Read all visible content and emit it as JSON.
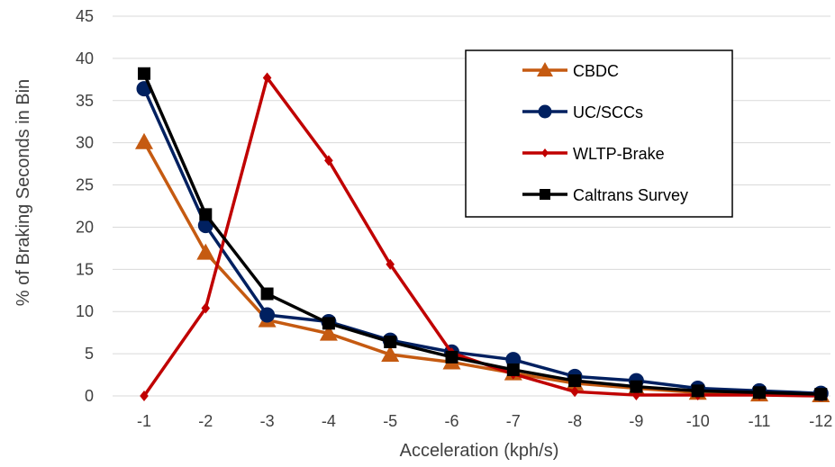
{
  "chart_data": {
    "type": "line",
    "title": "",
    "xlabel": "Acceleration (kph/s)",
    "ylabel": "% of Braking Seconds in Bin",
    "categories": [
      "-1",
      "-2",
      "-3",
      "-4",
      "-5",
      "-6",
      "-7",
      "-8",
      "-9",
      "-10",
      "-11",
      "-12"
    ],
    "ylim": [
      0,
      45
    ],
    "yticks": [
      "0",
      "5",
      "10",
      "15",
      "20",
      "25",
      "30",
      "35",
      "40",
      "45"
    ],
    "grid": "horizontal",
    "legend_position": "top-right",
    "series": [
      {
        "name": "CBDC",
        "color": "#c55a11",
        "marker": "triangle",
        "values": [
          30.1,
          17.0,
          9.0,
          7.4,
          4.9,
          4.0,
          2.7,
          1.5,
          0.9,
          0.4,
          0.2,
          0.1
        ]
      },
      {
        "name": "UC/SCCs",
        "color": "#002060",
        "marker": "circle",
        "values": [
          36.4,
          20.2,
          9.6,
          8.8,
          6.6,
          5.2,
          4.3,
          2.3,
          1.8,
          0.9,
          0.6,
          0.3
        ]
      },
      {
        "name": "WLTP-Brake",
        "color": "#c00000",
        "marker": "diamond",
        "values": [
          0,
          10.4,
          37.7,
          27.9,
          15.6,
          5.1,
          2.6,
          0.5,
          0.1,
          0.1,
          0.1,
          0
        ]
      },
      {
        "name": "Caltrans Survey",
        "color": "#000000",
        "marker": "square",
        "values": [
          38.2,
          21.5,
          12.1,
          8.6,
          6.4,
          4.6,
          3.1,
          1.8,
          1.1,
          0.6,
          0.4,
          0.2
        ]
      }
    ]
  }
}
